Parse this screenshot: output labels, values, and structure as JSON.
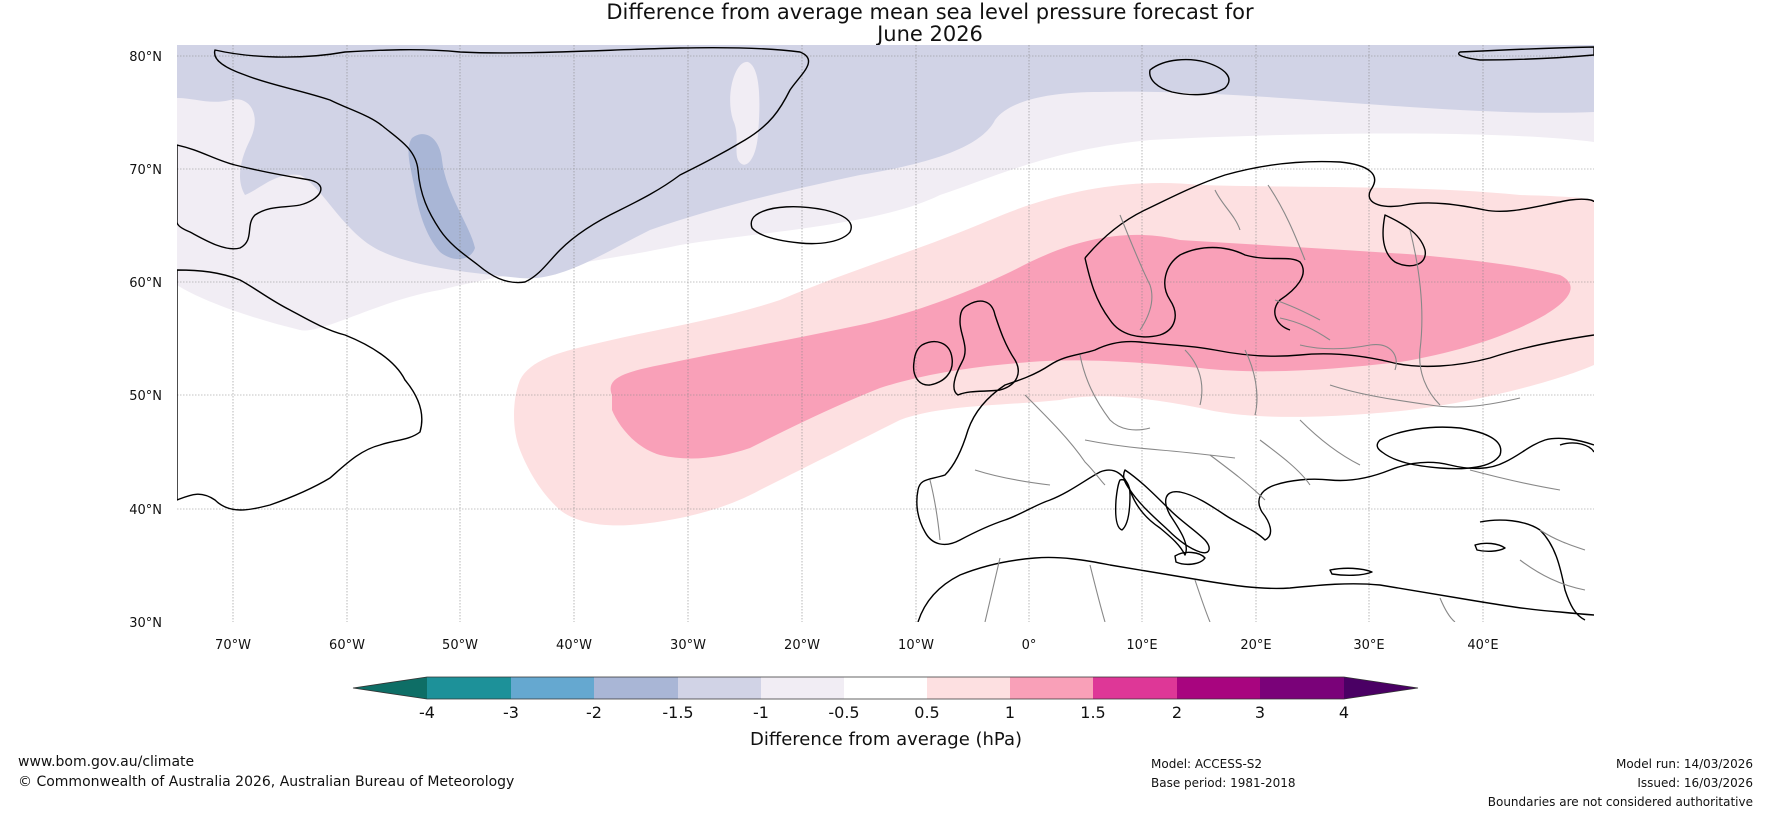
{
  "title": {
    "line1": "Difference from average mean sea level pressure forecast for",
    "line2": "June 2026"
  },
  "axes": {
    "lat_labels": [
      "80°N",
      "70°N",
      "60°N",
      "50°N",
      "40°N",
      "30°N"
    ],
    "lon_labels": [
      "70°W",
      "60°W",
      "50°W",
      "40°W",
      "30°W",
      "20°W",
      "10°W",
      "0°",
      "10°E",
      "20°E",
      "30°E",
      "40°E"
    ]
  },
  "colorbar": {
    "title": "Difference from average (hPa)",
    "ticks": [
      "-4",
      "-3",
      "-2",
      "-1.5",
      "-1",
      "-0.5",
      "0.5",
      "1",
      "1.5",
      "2",
      "3",
      "4"
    ],
    "colors": [
      "#0e6e66",
      "#1d9199",
      "#65a8d0",
      "#a9b6d6",
      "#d1d3e6",
      "#f1edf4",
      "#ffffff",
      "#fde0e1",
      "#f9a0b8",
      "#de3797",
      "#a8057f",
      "#7a0279",
      "#4a0064"
    ]
  },
  "footer": {
    "website": "www.bom.gov.au/climate",
    "copyright": "© Commonwealth of Australia 2026, Australian Bureau of Meteorology",
    "model": "Model: ACCESS-S2",
    "base_period": "Base period: 1981-2018",
    "model_run": "Model run: 14/03/2026",
    "issued": "Issued: 16/03/2026",
    "disclaimer": "Boundaries are not considered authoritative"
  }
}
